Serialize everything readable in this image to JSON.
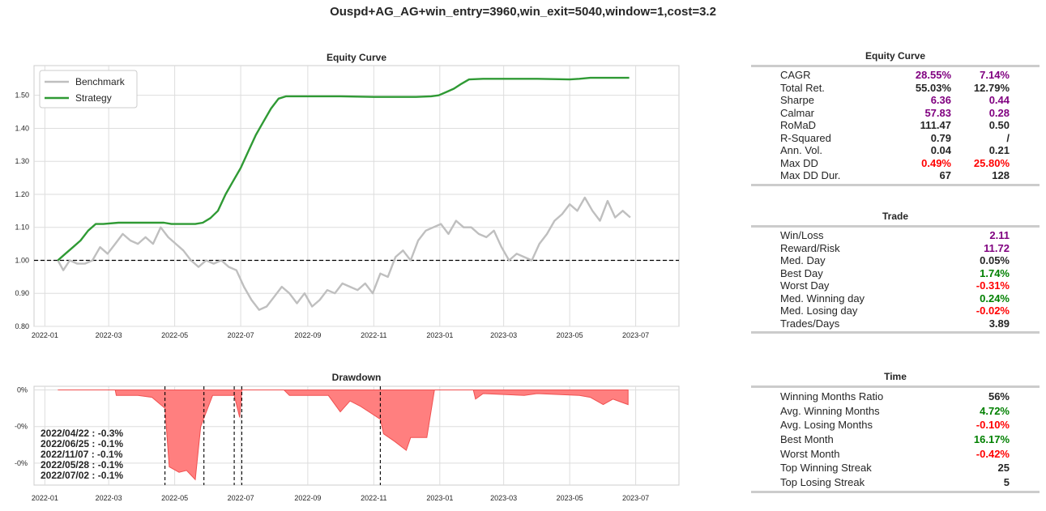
{
  "suptitle": "Ouspd+AG_AG+win_entry=3960,win_exit=5040,window=1,cost=3.2",
  "colors": {
    "benchmark": "#bfbfbf",
    "strategy": "#2f9a34",
    "drawdown": "#ff7f7f",
    "purple": "#800080",
    "green": "#008000",
    "red": "#ff0000",
    "black": "#262626"
  },
  "chart_data": [
    {
      "type": "line",
      "title": "Equity Curve",
      "x_ticks": [
        "2022-01",
        "2022-03",
        "2022-05",
        "2022-07",
        "2022-09",
        "2022-11",
        "2023-01",
        "2023-03",
        "2023-05",
        "2023-07"
      ],
      "xlim": [
        "2021-12-22",
        "2023-08-10"
      ],
      "ylim": [
        0.8,
        1.59
      ],
      "y_ticks": [
        "0.80",
        "0.90",
        "1.00",
        "1.10",
        "1.20",
        "1.30",
        "1.40",
        "1.50"
      ],
      "grid": true,
      "legend_position": "top-left",
      "reference_line": 1.0,
      "series": [
        {
          "name": "Benchmark",
          "x": [
            "2022-01-13",
            "2022-01-18",
            "2022-01-24",
            "2022-01-31",
            "2022-02-07",
            "2022-02-14",
            "2022-02-21",
            "2022-02-28",
            "2022-03-07",
            "2022-03-14",
            "2022-03-21",
            "2022-03-28",
            "2022-04-04",
            "2022-04-11",
            "2022-04-18",
            "2022-04-25",
            "2022-05-02",
            "2022-05-09",
            "2022-05-16",
            "2022-05-23",
            "2022-05-30",
            "2022-06-06",
            "2022-06-13",
            "2022-06-20",
            "2022-06-27",
            "2022-07-04",
            "2022-07-11",
            "2022-07-18",
            "2022-07-25",
            "2022-08-01",
            "2022-08-08",
            "2022-08-15",
            "2022-08-22",
            "2022-08-29",
            "2022-09-05",
            "2022-09-12",
            "2022-09-19",
            "2022-09-26",
            "2022-10-03",
            "2022-10-10",
            "2022-10-17",
            "2022-10-24",
            "2022-10-31",
            "2022-11-07",
            "2022-11-14",
            "2022-11-21",
            "2022-11-28",
            "2022-12-05",
            "2022-12-12",
            "2022-12-19",
            "2022-12-26",
            "2023-01-02",
            "2023-01-09",
            "2023-01-16",
            "2023-01-23",
            "2023-01-30",
            "2023-02-06",
            "2023-02-13",
            "2023-02-20",
            "2023-02-27",
            "2023-03-06",
            "2023-03-13",
            "2023-03-20",
            "2023-03-27",
            "2023-04-03",
            "2023-04-10",
            "2023-04-17",
            "2023-04-24",
            "2023-05-01",
            "2023-05-08",
            "2023-05-15",
            "2023-05-22",
            "2023-05-29",
            "2023-06-05",
            "2023-06-12",
            "2023-06-19",
            "2023-06-26"
          ],
          "values": [
            1.0,
            0.97,
            1.0,
            0.99,
            0.99,
            1.0,
            1.04,
            1.02,
            1.05,
            1.08,
            1.06,
            1.05,
            1.07,
            1.05,
            1.1,
            1.07,
            1.05,
            1.03,
            1.0,
            0.98,
            1.0,
            0.99,
            1.0,
            0.98,
            0.97,
            0.92,
            0.88,
            0.85,
            0.86,
            0.89,
            0.92,
            0.9,
            0.87,
            0.9,
            0.86,
            0.88,
            0.91,
            0.9,
            0.93,
            0.92,
            0.91,
            0.93,
            0.9,
            0.96,
            0.95,
            1.01,
            1.03,
            1.0,
            1.06,
            1.09,
            1.1,
            1.11,
            1.08,
            1.12,
            1.1,
            1.1,
            1.08,
            1.07,
            1.09,
            1.04,
            1.0,
            1.02,
            1.01,
            1.0,
            1.05,
            1.08,
            1.12,
            1.14,
            1.17,
            1.15,
            1.19,
            1.15,
            1.12,
            1.18,
            1.13,
            1.15,
            1.13
          ]
        },
        {
          "name": "Strategy",
          "x": [
            "2022-01-13",
            "2022-01-20",
            "2022-01-27",
            "2022-02-03",
            "2022-02-10",
            "2022-02-17",
            "2022-02-24",
            "2022-03-10",
            "2022-04-01",
            "2022-04-21",
            "2022-04-28",
            "2022-05-20",
            "2022-05-27",
            "2022-06-03",
            "2022-06-10",
            "2022-06-17",
            "2022-06-24",
            "2022-07-01",
            "2022-07-08",
            "2022-07-15",
            "2022-07-22",
            "2022-07-29",
            "2022-08-05",
            "2022-08-12",
            "2022-09-01",
            "2022-10-01",
            "2022-11-01",
            "2022-11-20",
            "2022-12-10",
            "2022-12-24",
            "2022-12-31",
            "2023-01-07",
            "2023-01-14",
            "2023-01-21",
            "2023-01-28",
            "2023-02-10",
            "2023-03-01",
            "2023-04-01",
            "2023-05-01",
            "2023-05-10",
            "2023-05-20",
            "2023-06-10",
            "2023-06-25"
          ],
          "values": [
            1.0,
            1.02,
            1.04,
            1.06,
            1.09,
            1.11,
            1.11,
            1.114,
            1.114,
            1.114,
            1.11,
            1.11,
            1.114,
            1.128,
            1.15,
            1.2,
            1.24,
            1.28,
            1.33,
            1.38,
            1.42,
            1.46,
            1.49,
            1.497,
            1.497,
            1.497,
            1.495,
            1.495,
            1.495,
            1.497,
            1.5,
            1.51,
            1.52,
            1.535,
            1.548,
            1.55,
            1.55,
            1.55,
            1.548,
            1.55,
            1.553,
            1.553,
            1.553
          ]
        }
      ]
    },
    {
      "type": "area",
      "title": "Drawdown",
      "x_ticks": [
        "2022-01",
        "2022-03",
        "2022-05",
        "2022-07",
        "2022-09",
        "2022-11",
        "2023-01",
        "2023-03",
        "2023-05",
        "2023-07"
      ],
      "y_ticks": [
        "0%",
        "-0%",
        "-0%"
      ],
      "ylim": [
        -0.0052,
        0.0002
      ],
      "series": [
        {
          "name": "Drawdown",
          "x": [
            "2022-01-13",
            "2022-03-07",
            "2022-03-08",
            "2022-03-28",
            "2022-04-10",
            "2022-04-22",
            "2022-04-26",
            "2022-05-05",
            "2022-05-12",
            "2022-05-20",
            "2022-05-25",
            "2022-06-05",
            "2022-06-25",
            "2022-06-30",
            "2022-07-02",
            "2022-08-10",
            "2022-08-15",
            "2022-09-20",
            "2022-10-01",
            "2022-10-10",
            "2022-10-20",
            "2022-11-07",
            "2022-11-10",
            "2022-11-20",
            "2022-12-01",
            "2022-12-05",
            "2022-12-20",
            "2022-12-27",
            "2023-02-01",
            "2023-02-03",
            "2023-02-10",
            "2023-03-20",
            "2023-04-01",
            "2023-05-10",
            "2023-05-20",
            "2023-06-01",
            "2023-06-10",
            "2023-06-24"
          ],
          "values": [
            0,
            0,
            -0.0003,
            -0.0003,
            -0.0004,
            -0.001,
            -0.0042,
            -0.0045,
            -0.0044,
            -0.0049,
            -0.002,
            -0.0003,
            -0.0003,
            -0.0015,
            0,
            0,
            -0.0003,
            -0.0003,
            -0.0012,
            -0.0006,
            -0.0009,
            -0.0016,
            -0.0024,
            -0.0028,
            -0.0033,
            -0.0026,
            -0.0026,
            0,
            0,
            -0.0005,
            -0.0002,
            -0.0003,
            -0.0002,
            -0.0003,
            -0.0004,
            -0.0008,
            -0.0005,
            -0.0008
          ]
        }
      ],
      "vlines": [
        "2022-04-22",
        "2022-05-28",
        "2022-06-25",
        "2022-07-02",
        "2022-11-07"
      ],
      "annotations": [
        "2022/04/22 : -0.3%",
        "2022/06/25 : -0.1%",
        "2022/11/07 : -0.1%",
        "2022/05/28 : -0.1%",
        "2022/07/02 : -0.1%"
      ]
    }
  ],
  "tables": {
    "equity": {
      "title": "Equity Curve",
      "rows": [
        {
          "label": "CAGR",
          "v1": "28.55%",
          "v2": "7.14%",
          "c1": "#800080",
          "c2": "#800080"
        },
        {
          "label": "Total Ret.",
          "v1": "55.03%",
          "v2": "12.79%",
          "c1": "#262626",
          "c2": "#262626"
        },
        {
          "label": "Sharpe",
          "v1": "6.36",
          "v2": "0.44",
          "c1": "#800080",
          "c2": "#800080"
        },
        {
          "label": "Calmar",
          "v1": "57.83",
          "v2": "0.28",
          "c1": "#800080",
          "c2": "#800080"
        },
        {
          "label": "RoMaD",
          "v1": "111.47",
          "v2": "0.50",
          "c1": "#262626",
          "c2": "#262626"
        },
        {
          "label": "R-Squared",
          "v1": "0.79",
          "v2": "/",
          "c1": "#262626",
          "c2": "#262626"
        },
        {
          "label": "Ann. Vol.",
          "v1": "0.04",
          "v2": "0.21",
          "c1": "#262626",
          "c2": "#262626"
        },
        {
          "label": "Max DD",
          "v1": "0.49%",
          "v2": "25.80%",
          "c1": "#ff0000",
          "c2": "#ff0000"
        },
        {
          "label": "Max DD Dur.",
          "v1": "67",
          "v2": "128",
          "c1": "#262626",
          "c2": "#262626"
        }
      ]
    },
    "trade": {
      "title": "Trade",
      "rows": [
        {
          "label": "Win/Loss",
          "v": "2.11",
          "c": "#800080"
        },
        {
          "label": "Reward/Risk",
          "v": "11.72",
          "c": "#800080"
        },
        {
          "label": "Med. Day",
          "v": "0.05%",
          "c": "#262626"
        },
        {
          "label": "Best Day",
          "v": "1.74%",
          "c": "#008000"
        },
        {
          "label": "Worst Day",
          "v": "-0.31%",
          "c": "#ff0000"
        },
        {
          "label": "Med. Winning day",
          "v": "0.24%",
          "c": "#008000"
        },
        {
          "label": "Med. Losing day",
          "v": "-0.02%",
          "c": "#ff0000"
        },
        {
          "label": "Trades/Days",
          "v": "3.89",
          "c": "#262626"
        }
      ]
    },
    "time": {
      "title": "Time",
      "rows": [
        {
          "label": "Winning Months Ratio",
          "v": "56%",
          "c": "#262626"
        },
        {
          "label": "Avg. Winning Months",
          "v": "4.72%",
          "c": "#008000"
        },
        {
          "label": "Avg. Losing Months",
          "v": "-0.10%",
          "c": "#ff0000"
        },
        {
          "label": "Best Month",
          "v": "16.17%",
          "c": "#008000"
        },
        {
          "label": "Worst Month",
          "v": "-0.42%",
          "c": "#ff0000"
        },
        {
          "label": "Top Winning Streak",
          "v": "25",
          "c": "#262626"
        },
        {
          "label": "Top Losing Streak",
          "v": "5",
          "c": "#262626"
        }
      ]
    }
  }
}
